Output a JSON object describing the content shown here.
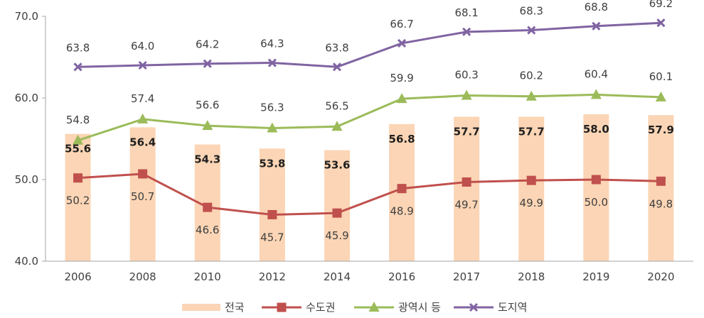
{
  "chart_data": {
    "type": "bar+line",
    "categories": [
      "2006",
      "2008",
      "2010",
      "2012",
      "2014",
      "2016",
      "2017",
      "2018",
      "2019",
      "2020"
    ],
    "ylim": [
      40,
      70
    ],
    "yticks": [
      "40.0",
      "50.0",
      "60.0",
      "70.0"
    ],
    "bars": {
      "name": "전국",
      "color": "#fbd5b5",
      "values": [
        55.6,
        56.4,
        54.3,
        53.8,
        53.6,
        56.8,
        57.7,
        57.7,
        58.0,
        57.9
      ],
      "labels": [
        "55.6",
        "56.4",
        "54.3",
        "53.8",
        "53.6",
        "56.8",
        "57.7",
        "57.7",
        "58.0",
        "57.9"
      ]
    },
    "series": [
      {
        "name": "수도권",
        "color": "#c0504d",
        "marker": "square",
        "values": [
          50.2,
          50.7,
          46.6,
          45.7,
          45.9,
          48.9,
          49.7,
          49.9,
          50.0,
          49.8
        ],
        "labels": [
          "50.2",
          "50.7",
          "46.6",
          "45.7",
          "45.9",
          "48.9",
          "49.7",
          "49.9",
          "50.0",
          "49.8"
        ]
      },
      {
        "name": "광역시 등",
        "color": "#9bbb59",
        "marker": "triangle",
        "values": [
          54.8,
          57.4,
          56.6,
          56.3,
          56.5,
          59.9,
          60.3,
          60.2,
          60.4,
          60.1
        ],
        "labels": [
          "54.8",
          "57.4",
          "56.6",
          "56.3",
          "56.5",
          "59.9",
          "60.3",
          "60.2",
          "60.4",
          "60.1"
        ]
      },
      {
        "name": "도지역",
        "color": "#8064a2",
        "marker": "x",
        "values": [
          63.8,
          64.0,
          64.2,
          64.3,
          63.8,
          66.7,
          68.1,
          68.3,
          68.8,
          69.2
        ],
        "labels": [
          "63.8",
          "64.0",
          "64.2",
          "64.3",
          "63.8",
          "66.7",
          "68.1",
          "68.3",
          "68.8",
          "69.2"
        ]
      }
    ],
    "legend": {
      "position": "bottom",
      "entries": [
        "전국",
        "수도권",
        "광역시 등",
        "도지역"
      ]
    },
    "grid": false
  }
}
